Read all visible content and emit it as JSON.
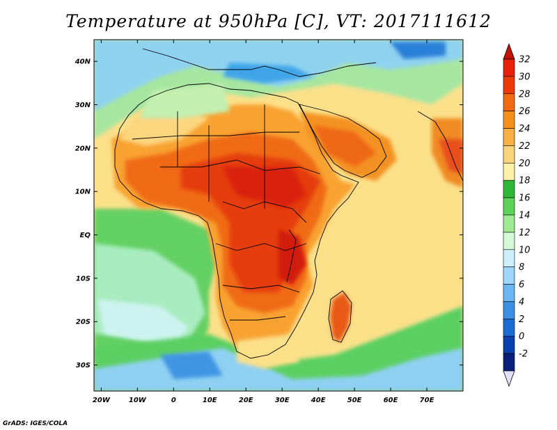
{
  "title": "Temperature at 950hPa [C], VT: 2017111612",
  "credit": "GrADS: IGES/COLA",
  "lat_labels": [
    "40N",
    "30N",
    "20N",
    "10N",
    "EQ",
    "10S",
    "20S",
    "30S"
  ],
  "lat_values": [
    40,
    30,
    20,
    10,
    0,
    -10,
    -20,
    -30
  ],
  "lon_labels": [
    "20W",
    "10W",
    "0",
    "10E",
    "20E",
    "30E",
    "40E",
    "50E",
    "60E",
    "70E"
  ],
  "lon_values": [
    -20,
    -10,
    0,
    10,
    20,
    30,
    40,
    50,
    60,
    70
  ],
  "map_extent": {
    "lon": [
      -22,
      80
    ],
    "lat": [
      -36,
      45
    ]
  },
  "colorbar": {
    "labels": [
      "32",
      "30",
      "28",
      "26",
      "24",
      "22",
      "20",
      "18",
      "16",
      "14",
      "12",
      "10",
      "8",
      "6",
      "4",
      "2",
      "0",
      "-2"
    ],
    "colors_top_to_bottom": [
      "#e8200a",
      "#ee3a08",
      "#f26a10",
      "#f5901d",
      "#f8b045",
      "#fad47a",
      "#fdf0a8",
      "#2fb838",
      "#5ed35a",
      "#9eea90",
      "#d4f8d8",
      "#cdeffc",
      "#9ed6fb",
      "#6ab6f3",
      "#3b90e3",
      "#1a6bd2",
      "#0a3fae",
      "#0a1f7a"
    ],
    "top_arrow_color": "#c21307",
    "bottom_arrow_color": "#e4e0fb"
  }
}
